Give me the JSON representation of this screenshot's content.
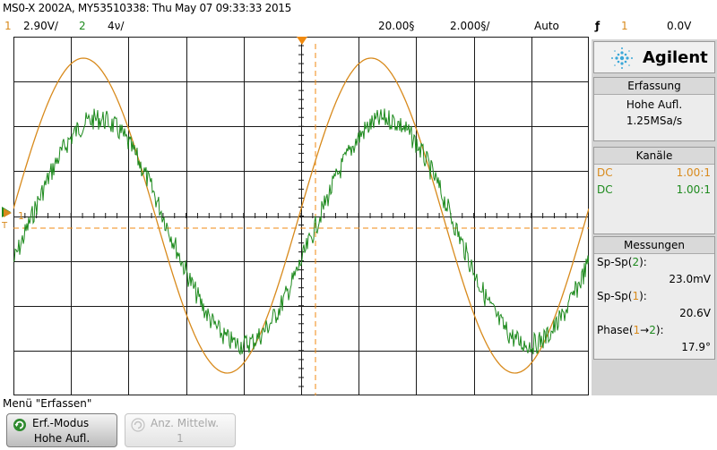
{
  "header": {
    "title": "MS0-X 2002A, MY53510338: Thu May 07 09:33:33 2015"
  },
  "status": {
    "ch1_label": "1",
    "ch1_scale": "2.90V/",
    "ch2_label": "2",
    "ch2_scale": "4ν/",
    "time_offset": "20.00§",
    "time_scale": "2.000§/",
    "trigger_mode": "Auto",
    "trigger_edge_symbol": "ƒ",
    "trigger_channel": "1",
    "trigger_level": "0.0V"
  },
  "display": {
    "ch1_marker": "1",
    "ch2_marker": "2",
    "trigger_marker": "T"
  },
  "panel": {
    "brand": "Agilent",
    "acq_header": "Erfassung",
    "acq_mode": "Hohe Aufl.",
    "sample_rate": "1.25MSa/s",
    "channels_header": "Kanäle",
    "ch1_coupling": "DC",
    "ch1_probe": "1.00:1",
    "ch2_coupling": "DC",
    "ch2_probe": "1.00:1",
    "meas_header": "Messungen",
    "m1_label_a": "Sp-Sp(",
    "m1_label_ch": "2",
    "m1_label_b": "):",
    "m1_value": "23.0mV",
    "m2_label_a": "Sp-Sp(",
    "m2_label_ch": "1",
    "m2_label_b": "):",
    "m2_value": "20.6V",
    "m3_label_a": "Phase(",
    "m3_label_ch1": "1",
    "m3_arrow": "→",
    "m3_label_ch2": "2",
    "m3_label_b": "):",
    "m3_value": "17.9°"
  },
  "menu": {
    "title": "Menü \"Erfassen\"",
    "key1_line1": "Erf.-Modus",
    "key1_line2": "Hohe Aufl.",
    "key2_line1": "Anz. Mittelw.",
    "key2_line2": "1"
  },
  "colors": {
    "ch1": "#d88a1c",
    "ch2": "#1d8a1d",
    "trigger": "#f08a10",
    "grid": "#1a1a1a",
    "brand_icon": "#3aa7d8"
  }
}
